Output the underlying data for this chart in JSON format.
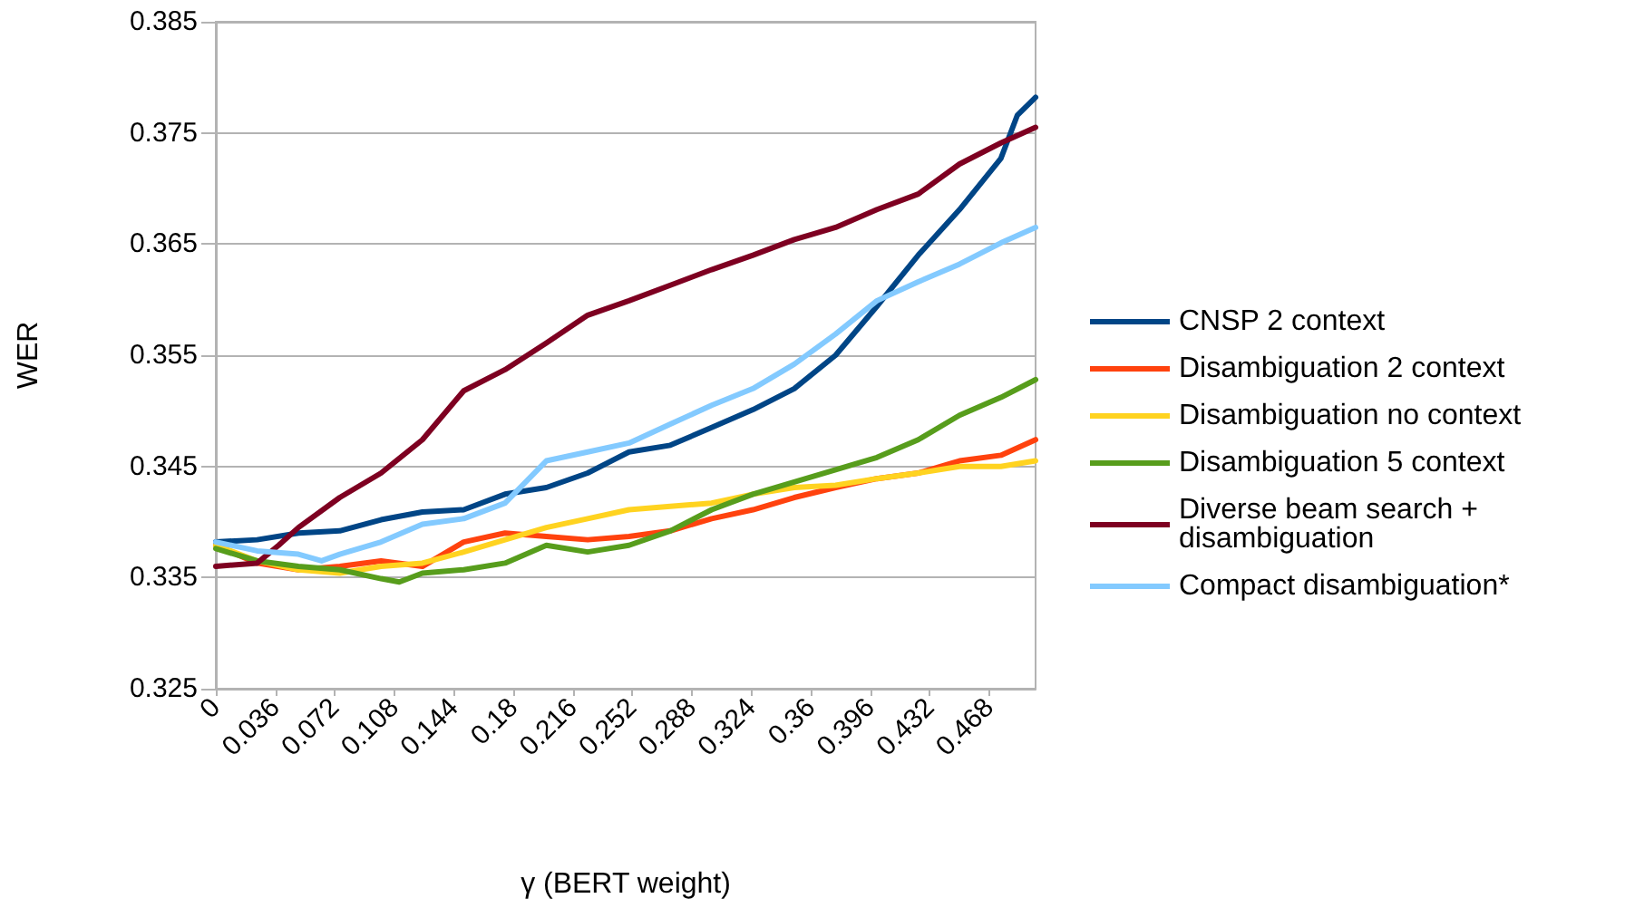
{
  "chart_data": {
    "type": "line",
    "xlabel": "γ (BERT weight)",
    "ylabel": "WER",
    "x": [
      0,
      0.025,
      0.05,
      0.075,
      0.1,
      0.125,
      0.15,
      0.175,
      0.2,
      0.225,
      0.25,
      0.275,
      0.3,
      0.325,
      0.35,
      0.375,
      0.4,
      0.425,
      0.45,
      0.475,
      0.496
    ],
    "series": [
      {
        "name": "CNSP 2 context",
        "color": "#004586",
        "x": [
          0,
          0.025,
          0.05,
          0.075,
          0.1,
          0.125,
          0.15,
          0.175,
          0.2,
          0.225,
          0.25,
          0.275,
          0.3,
          0.325,
          0.35,
          0.375,
          0.4,
          0.425,
          0.45,
          0.475,
          0.485,
          0.496
        ],
        "values": [
          0.3382,
          0.3384,
          0.339,
          0.3392,
          0.3402,
          0.3409,
          0.3411,
          0.3425,
          0.3431,
          0.3444,
          0.3463,
          0.3469,
          0.3485,
          0.3501,
          0.352,
          0.355,
          0.3594,
          0.364,
          0.3681,
          0.3727,
          0.3766,
          0.3782
        ]
      },
      {
        "name": "Disambiguation 2 context",
        "color": "#ff420e",
        "values": [
          0.3379,
          0.3363,
          0.3357,
          0.336,
          0.3365,
          0.336,
          0.3382,
          0.339,
          0.3387,
          0.3384,
          0.3387,
          0.3392,
          0.3403,
          0.3411,
          0.3422,
          0.3431,
          0.3439,
          0.3444,
          0.3455,
          0.346,
          0.3474
        ]
      },
      {
        "name": "Disambiguation no context",
        "color": "#ffd320",
        "values": [
          0.3379,
          0.3365,
          0.3357,
          0.3354,
          0.336,
          0.3363,
          0.3373,
          0.3384,
          0.3395,
          0.3403,
          0.3411,
          0.3414,
          0.3417,
          0.3425,
          0.3431,
          0.3433,
          0.3439,
          0.3444,
          0.345,
          0.345,
          0.3455
        ]
      },
      {
        "name": "Disambiguation 5 context",
        "color": "#579d1c",
        "x": [
          0,
          0.025,
          0.05,
          0.075,
          0.1,
          0.111,
          0.125,
          0.15,
          0.175,
          0.2,
          0.225,
          0.25,
          0.275,
          0.3,
          0.325,
          0.35,
          0.375,
          0.4,
          0.425,
          0.45,
          0.475,
          0.496
        ],
        "values": [
          0.3376,
          0.3365,
          0.336,
          0.3357,
          0.3349,
          0.3346,
          0.3354,
          0.3357,
          0.3363,
          0.3379,
          0.3373,
          0.3379,
          0.3392,
          0.3411,
          0.3425,
          0.3436,
          0.3447,
          0.3458,
          0.3474,
          0.3496,
          0.3512,
          0.3528
        ]
      },
      {
        "name": "Diverse beam search + disambiguation",
        "color": "#7e0021",
        "x": [
          0,
          0.025,
          0.038,
          0.05,
          0.075,
          0.1,
          0.125,
          0.15,
          0.175,
          0.2,
          0.225,
          0.25,
          0.275,
          0.3,
          0.325,
          0.35,
          0.375,
          0.4,
          0.425,
          0.45,
          0.475,
          0.496
        ],
        "values": [
          0.336,
          0.3363,
          0.3379,
          0.3395,
          0.3422,
          0.3444,
          0.3474,
          0.3518,
          0.3537,
          0.3561,
          0.3586,
          0.3599,
          0.3613,
          0.3627,
          0.364,
          0.3654,
          0.3665,
          0.3681,
          0.3695,
          0.3722,
          0.3741,
          0.3755
        ]
      },
      {
        "name": "Compact disambiguation*",
        "color": "#83caff",
        "x": [
          0,
          0.025,
          0.05,
          0.064,
          0.075,
          0.1,
          0.125,
          0.15,
          0.175,
          0.2,
          0.225,
          0.25,
          0.275,
          0.3,
          0.325,
          0.35,
          0.375,
          0.4,
          0.425,
          0.45,
          0.475,
          0.496
        ],
        "values": [
          0.3382,
          0.3374,
          0.3371,
          0.3365,
          0.3371,
          0.3382,
          0.3398,
          0.3403,
          0.3417,
          0.3455,
          0.3463,
          0.3471,
          0.3488,
          0.3505,
          0.352,
          0.3542,
          0.3569,
          0.3599,
          0.3616,
          0.3632,
          0.3651,
          0.3665
        ]
      }
    ],
    "xlim": [
      0,
      0.496
    ],
    "xticks": [
      0,
      0.036,
      0.072,
      0.108,
      0.144,
      0.18,
      0.216,
      0.252,
      0.288,
      0.324,
      0.36,
      0.396,
      0.432,
      0.468
    ],
    "ylim": [
      0.325,
      0.385
    ],
    "yticks": [
      0.325,
      0.335,
      0.345,
      0.355,
      0.365,
      0.375,
      0.385
    ],
    "grid": "y",
    "legend": "right",
    "marker": "none",
    "line_style": "solid"
  }
}
